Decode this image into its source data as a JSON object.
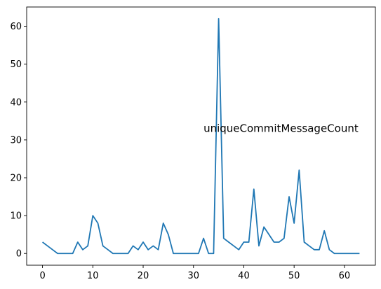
{
  "chart_data": {
    "type": "line",
    "title": "",
    "xlabel": "",
    "ylabel": "",
    "xlim": [
      -3.15,
      66.15
    ],
    "ylim": [
      -3.1,
      65.1
    ],
    "xticks": [
      0,
      10,
      20,
      30,
      40,
      50,
      60
    ],
    "yticks": [
      0,
      10,
      20,
      30,
      40,
      50,
      60
    ],
    "grid": false,
    "annotation": {
      "text": "uniqueCommitMessageCount",
      "x": 32,
      "y": 33
    },
    "series": [
      {
        "color": "#1f77b4",
        "x": [
          0,
          1,
          2,
          3,
          4,
          5,
          6,
          7,
          8,
          9,
          10,
          11,
          12,
          13,
          14,
          15,
          16,
          17,
          18,
          19,
          20,
          21,
          22,
          23,
          24,
          25,
          26,
          27,
          28,
          29,
          30,
          31,
          32,
          33,
          34,
          35,
          36,
          37,
          38,
          39,
          40,
          41,
          42,
          43,
          44,
          45,
          46,
          47,
          48,
          49,
          50,
          51,
          52,
          53,
          54,
          55,
          56,
          57,
          58,
          59,
          60,
          61,
          62,
          63
        ],
        "values": [
          3,
          2,
          1,
          0,
          0,
          0,
          0,
          3,
          1,
          2,
          10,
          8,
          2,
          1,
          0,
          0,
          0,
          0,
          2,
          1,
          3,
          1,
          2,
          1,
          8,
          5,
          0,
          0,
          0,
          0,
          0,
          0,
          4,
          0,
          0,
          62,
          4,
          3,
          2,
          1,
          3,
          3,
          17,
          2,
          7,
          5,
          3,
          3,
          4,
          15,
          8,
          22,
          3,
          2,
          1,
          1,
          6,
          1,
          0,
          0,
          0,
          0,
          0,
          0
        ]
      }
    ]
  }
}
